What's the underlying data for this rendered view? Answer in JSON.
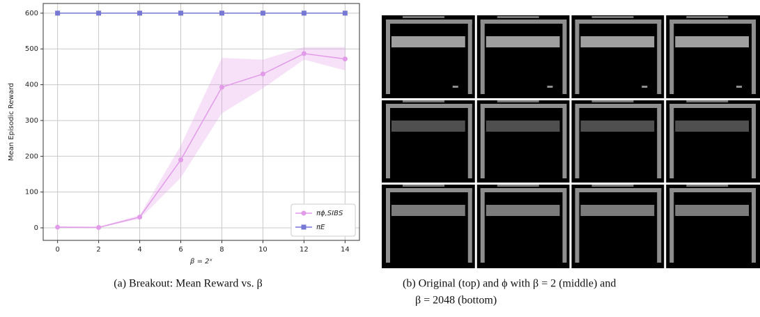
{
  "chart_data": {
    "type": "line",
    "xlabel": "β = 2ˣ",
    "ylabel": "Mean Episodic Reward",
    "x": [
      0,
      2,
      4,
      6,
      8,
      10,
      12,
      14
    ],
    "series": [
      {
        "name": "πϕ,SIBS",
        "color": "#e29be9",
        "marker": "circle",
        "values": [
          2,
          1,
          30,
          190,
          393,
          430,
          487,
          472
        ],
        "lower": [
          0,
          0,
          25,
          140,
          320,
          390,
          470,
          440
        ],
        "upper": [
          4,
          3,
          35,
          230,
          475,
          470,
          505,
          505
        ]
      },
      {
        "name": "πE",
        "color": "#7777d4",
        "marker": "square",
        "values": [
          600,
          600,
          600,
          600,
          600,
          600,
          600,
          600
        ]
      }
    ],
    "xlim": [
      -0.7,
      14.7
    ],
    "ylim": [
      -35,
      627
    ],
    "xticks": [
      0,
      2,
      4,
      6,
      8,
      10,
      12,
      14
    ],
    "yticks": [
      0,
      100,
      200,
      300,
      400,
      500,
      600
    ],
    "grid": true,
    "legend": "lower right"
  },
  "captions": [
    "(a) Breakout: Mean Reward vs. β",
    "(b) Original (top) and ϕ with β = 2 (middle) and",
    "β = 2048 (bottom)"
  ]
}
